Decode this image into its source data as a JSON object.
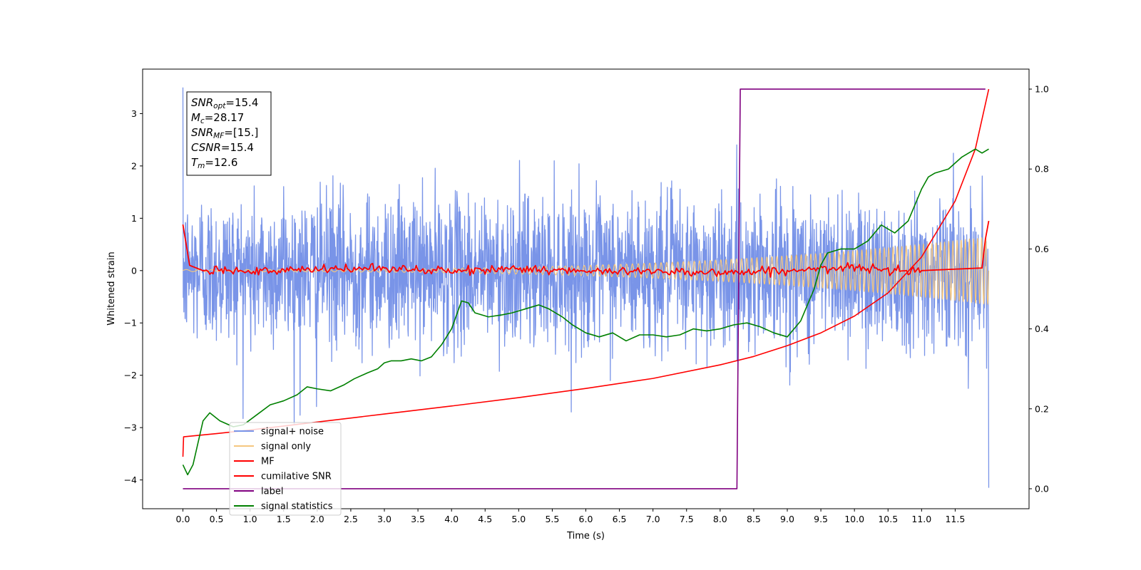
{
  "chart_data": {
    "type": "line",
    "title": "",
    "xlabel": "Time (s)",
    "ylabel": "Whitened strain",
    "xlim": [
      -0.6,
      12.6
    ],
    "ylim": [
      -4.55,
      3.85
    ],
    "y2lim": [
      -0.05,
      1.05
    ],
    "xticks": [
      "0.0",
      "0.5",
      "1.0",
      "1.5",
      "2.0",
      "2.5",
      "3.0",
      "3.5",
      "4.0",
      "4.5",
      "5.0",
      "5.5",
      "6.0",
      "6.5",
      "7.0",
      "7.5",
      "8.0",
      "8.5",
      "9.0",
      "9.5",
      "10.0",
      "10.5",
      "11.0",
      "11.5"
    ],
    "yticks": [
      "3",
      "2",
      "1",
      "0",
      "−1",
      "−2",
      "−3",
      "−4"
    ],
    "y2ticks": [
      "1.0",
      "0.8",
      "0.6",
      "0.4",
      "0.2",
      "0.0"
    ],
    "grid": false,
    "legend_position": "lower-left",
    "annotation": {
      "lines": [
        {
          "sym": "SNR",
          "sub": "opt",
          "value": "=15.4"
        },
        {
          "sym": "M",
          "sub": "c",
          "value": "=28.17"
        },
        {
          "sym": "SNR",
          "sub": "MF",
          "value": "=[15.]"
        },
        {
          "sym": "CSNR",
          "sub": "",
          "value": "=15.4"
        },
        {
          "sym": "T",
          "sub": "m",
          "value": "=12.6"
        }
      ]
    },
    "series": [
      {
        "name": "signal+ noise",
        "color": "#7994e8",
        "axis": "left",
        "style": "noise",
        "params": {
          "sigma": 0.7,
          "x_start": 0.0,
          "x_end": 12.0,
          "min": -4.15,
          "max": 3.5
        }
      },
      {
        "name": "signal only",
        "color": "#f5c77f",
        "axis": "left",
        "style": "chirp",
        "params": {
          "x_start": 0.0,
          "x_end": 12.0,
          "amp_start": 0.02,
          "amp_end": 0.65
        }
      },
      {
        "name": "MF",
        "color": "#ff0000",
        "axis": "left",
        "x": [
          0.0,
          0.1,
          0.2,
          0.3,
          0.5,
          1.0,
          2.0,
          3.0,
          4.0,
          5.0,
          6.0,
          7.0,
          8.0,
          9.0,
          10.0,
          11.0,
          11.9,
          11.95,
          12.0
        ],
        "y": [
          0.88,
          0.1,
          0.05,
          0.0,
          0.05,
          -0.03,
          0.02,
          0.05,
          -0.02,
          0.05,
          -0.03,
          0.0,
          -0.04,
          0.0,
          0.05,
          0.0,
          0.05,
          0.6,
          0.95
        ]
      },
      {
        "name": "cumilative SNR",
        "color": "#ff0000",
        "axis": "right",
        "x": [
          0.0,
          0.01,
          0.5,
          1.0,
          2.0,
          3.0,
          4.0,
          5.0,
          6.0,
          7.0,
          8.0,
          8.5,
          9.0,
          9.5,
          10.0,
          10.5,
          11.0,
          11.5,
          11.8,
          12.0
        ],
        "y": [
          0.08,
          0.13,
          0.138,
          0.147,
          0.167,
          0.187,
          0.207,
          0.228,
          0.251,
          0.276,
          0.31,
          0.331,
          0.358,
          0.39,
          0.432,
          0.49,
          0.58,
          0.72,
          0.85,
          1.0
        ]
      },
      {
        "name": "label",
        "color": "#800080",
        "axis": "right",
        "x": [
          0.0,
          8.25,
          8.3,
          11.95
        ],
        "y": [
          0.0,
          0.0,
          1.0,
          1.0
        ]
      },
      {
        "name": "signal statistics",
        "color": "#008000",
        "axis": "right",
        "x": [
          0.0,
          0.07,
          0.15,
          0.3,
          0.4,
          0.55,
          0.75,
          0.9,
          1.1,
          1.3,
          1.5,
          1.7,
          1.85,
          2.0,
          2.2,
          2.4,
          2.55,
          2.75,
          2.9,
          3.0,
          3.1,
          3.25,
          3.4,
          3.55,
          3.7,
          3.85,
          4.0,
          4.15,
          4.25,
          4.35,
          4.55,
          4.75,
          4.9,
          5.0,
          5.1,
          5.3,
          5.45,
          5.65,
          5.8,
          6.0,
          6.2,
          6.4,
          6.6,
          6.8,
          7.0,
          7.2,
          7.4,
          7.6,
          7.8,
          8.0,
          8.2,
          8.4,
          8.6,
          8.8,
          9.0,
          9.2,
          9.4,
          9.5,
          9.6,
          9.8,
          10.0,
          10.2,
          10.4,
          10.6,
          10.8,
          11.0,
          11.1,
          11.2,
          11.4,
          11.6,
          11.8,
          11.9,
          12.0
        ],
        "y": [
          0.06,
          0.035,
          0.06,
          0.17,
          0.19,
          0.17,
          0.155,
          0.16,
          0.185,
          0.21,
          0.22,
          0.235,
          0.255,
          0.25,
          0.245,
          0.26,
          0.275,
          0.29,
          0.3,
          0.315,
          0.32,
          0.32,
          0.325,
          0.32,
          0.33,
          0.36,
          0.4,
          0.47,
          0.465,
          0.44,
          0.43,
          0.435,
          0.44,
          0.445,
          0.45,
          0.46,
          0.45,
          0.43,
          0.41,
          0.39,
          0.38,
          0.39,
          0.37,
          0.385,
          0.385,
          0.38,
          0.385,
          0.4,
          0.395,
          0.4,
          0.41,
          0.415,
          0.405,
          0.39,
          0.38,
          0.42,
          0.5,
          0.56,
          0.59,
          0.6,
          0.6,
          0.62,
          0.66,
          0.64,
          0.67,
          0.75,
          0.78,
          0.79,
          0.8,
          0.83,
          0.85,
          0.84,
          0.85
        ]
      }
    ]
  }
}
